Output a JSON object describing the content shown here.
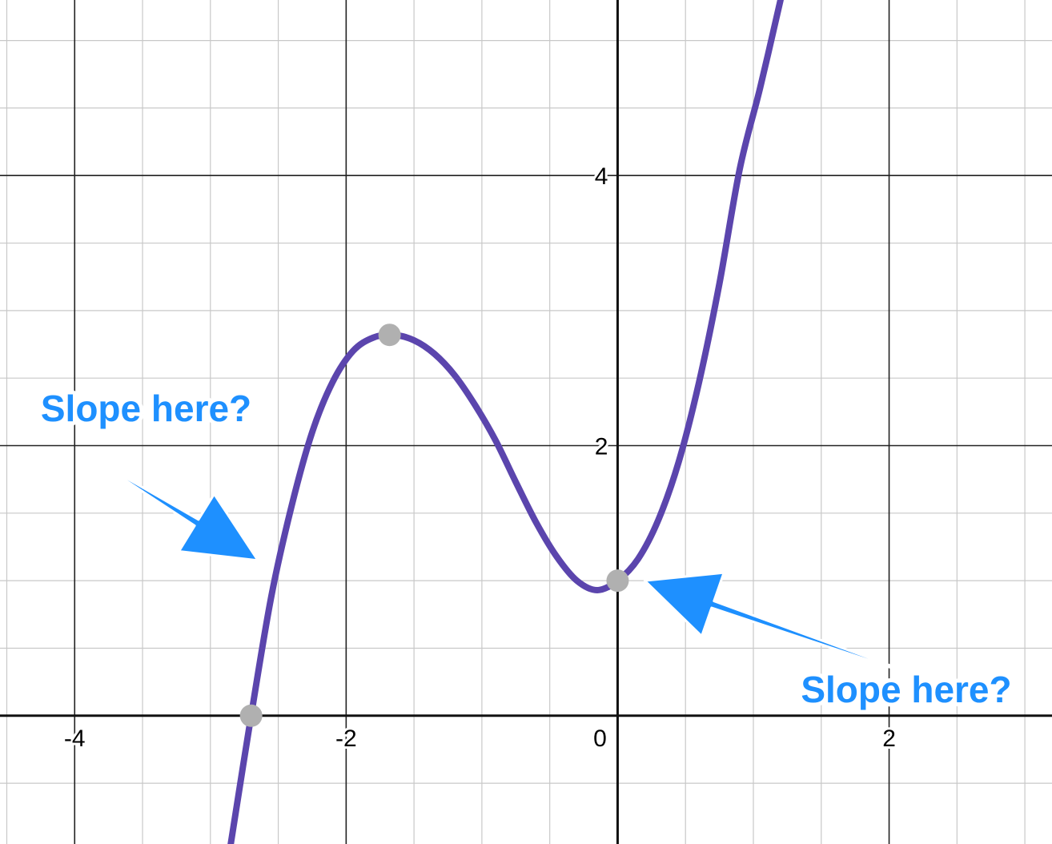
{
  "chart_data": {
    "type": "line",
    "title": "",
    "xlabel": "",
    "ylabel": "",
    "xlim": [
      -4.55,
      3.2
    ],
    "ylim": [
      -0.95,
      5.3
    ],
    "grid": true,
    "minor_step": 0.5,
    "major_step": 2,
    "x_tick_labels": [
      {
        "value": -4,
        "label": "-4"
      },
      {
        "value": -2,
        "label": "-2"
      },
      {
        "value": 0,
        "label": "0"
      },
      {
        "value": 2,
        "label": "2"
      }
    ],
    "y_tick_labels": [
      {
        "value": 2,
        "label": "2"
      },
      {
        "value": 4,
        "label": "4"
      }
    ],
    "series": [
      {
        "color": "#5b45ad",
        "x": [
          -2.85,
          -2.7,
          -2.55,
          -2.4,
          -2.25,
          -2.1,
          -1.95,
          -1.8,
          -1.65,
          -1.5,
          -1.35,
          -1.2,
          -1.05,
          -0.9,
          -0.75,
          -0.6,
          -0.45,
          -0.3,
          -0.15,
          0,
          0.15,
          0.3,
          0.45,
          0.6,
          0.75,
          0.9,
          1.05,
          1.2
        ],
        "y": [
          -0.95,
          0.0,
          0.89,
          1.56,
          2.1,
          2.47,
          2.7,
          2.8,
          2.82,
          2.78,
          2.68,
          2.52,
          2.3,
          2.04,
          1.73,
          1.43,
          1.18,
          1.0,
          0.93,
          1.0,
          1.16,
          1.45,
          1.88,
          2.47,
          3.2,
          4.05,
          4.65,
          5.3
        ]
      }
    ],
    "points": [
      {
        "x": -2.7,
        "y": 0,
        "color": "#b0b0b0"
      },
      {
        "x": -1.68,
        "y": 2.82,
        "color": "#b0b0b0"
      },
      {
        "x": 0,
        "y": 1.0,
        "color": "#b0b0b0"
      }
    ],
    "annotations": [
      {
        "text": "Slope here?",
        "text_x": -4.25,
        "text_y": 2.18,
        "arrow_from": [
          -3.7,
          1.8
        ],
        "arrow_to": [
          -2.65,
          1.15
        ],
        "color": "#1e90ff"
      },
      {
        "text": "Slope here?",
        "text_x": 1.35,
        "text_y": 0.1,
        "arrow_from": [
          2.05,
          0.35
        ],
        "arrow_to": [
          0.2,
          1.0
        ],
        "color": "#1e90ff"
      }
    ]
  }
}
